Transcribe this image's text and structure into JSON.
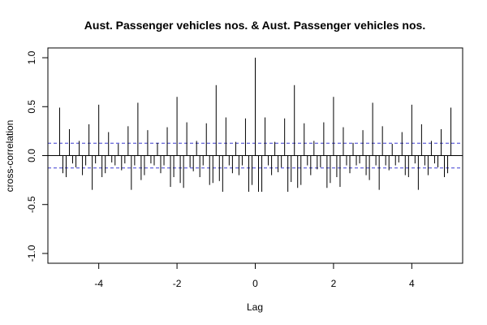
{
  "chart_data": {
    "type": "bar",
    "title": "Aust. Passenger vehicles nos. & Aust. Passenger vehicles nos.",
    "xlabel": "Lag",
    "ylabel": "cross-correlation",
    "xlim": [
      -5.3,
      5.3
    ],
    "ylim": [
      -1.1,
      1.1
    ],
    "x_ticks": [
      -4,
      -2,
      0,
      2,
      4
    ],
    "x_tick_labels": [
      "-4",
      "-2",
      "0",
      "2",
      "4"
    ],
    "y_ticks": [
      -1.0,
      -0.5,
      0.0,
      0.5,
      1.0
    ],
    "y_tick_labels": [
      "-1.0",
      "-0.5",
      "0.0",
      "0.5",
      "1.0"
    ],
    "confidence_limit": 0.127,
    "zero_line": 0,
    "grid": false,
    "style": {
      "bar_color": "#000000",
      "ci_color": "#3b3bd1"
    },
    "series": [
      {
        "lags": [
          -5.0,
          -4.917,
          -4.833,
          -4.75,
          -4.667,
          -4.583,
          -4.5,
          -4.417,
          -4.333,
          -4.25,
          -4.167,
          -4.083,
          -4.0,
          -3.917,
          -3.833,
          -3.75,
          -3.667,
          -3.583,
          -3.5,
          -3.417,
          -3.333,
          -3.25,
          -3.167,
          -3.083,
          -3.0,
          -2.917,
          -2.833,
          -2.75,
          -2.667,
          -2.583,
          -2.5,
          -2.417,
          -2.333,
          -2.25,
          -2.167,
          -2.083,
          -2.0,
          -1.917,
          -1.833,
          -1.75,
          -1.667,
          -1.583,
          -1.5,
          -1.417,
          -1.333,
          -1.25,
          -1.167,
          -1.083,
          -1.0,
          -0.917,
          -0.833,
          -0.75,
          -0.667,
          -0.583,
          -0.5,
          -0.417,
          -0.333,
          -0.25,
          -0.167,
          -0.083,
          0.0,
          0.083,
          0.167,
          0.25,
          0.333,
          0.417,
          0.5,
          0.583,
          0.667,
          0.75,
          0.833,
          0.917,
          1.0,
          1.083,
          1.167,
          1.25,
          1.333,
          1.417,
          1.5,
          1.583,
          1.667,
          1.75,
          1.833,
          1.917,
          2.0,
          2.083,
          2.167,
          2.25,
          2.333,
          2.417,
          2.5,
          2.583,
          2.667,
          2.75,
          2.833,
          2.917,
          3.0,
          3.083,
          3.167,
          3.25,
          3.333,
          3.417,
          3.5,
          3.583,
          3.667,
          3.75,
          3.833,
          3.917,
          4.0,
          4.083,
          4.167,
          4.25,
          4.333,
          4.417,
          4.5,
          4.583,
          4.667,
          4.75,
          4.833,
          4.917,
          5.0
        ],
        "values": [
          0.49,
          -0.18,
          -0.22,
          0.27,
          -0.08,
          -0.12,
          0.15,
          -0.2,
          -0.1,
          0.32,
          -0.35,
          -0.08,
          0.52,
          -0.22,
          -0.18,
          0.24,
          -0.07,
          -0.1,
          0.12,
          -0.15,
          -0.08,
          0.3,
          -0.35,
          -0.1,
          0.54,
          -0.25,
          -0.2,
          0.26,
          -0.08,
          -0.1,
          0.13,
          -0.18,
          -0.1,
          0.29,
          -0.32,
          -0.22,
          0.6,
          -0.28,
          -0.33,
          0.34,
          -0.12,
          -0.16,
          0.15,
          -0.22,
          -0.1,
          0.33,
          -0.3,
          -0.28,
          0.72,
          -0.26,
          -0.37,
          0.39,
          -0.1,
          -0.18,
          0.14,
          -0.2,
          -0.1,
          0.38,
          -0.37,
          -0.3,
          1.0,
          -0.37,
          -0.37,
          0.39,
          -0.1,
          -0.2,
          0.14,
          -0.17,
          -0.12,
          0.38,
          -0.37,
          -0.27,
          0.72,
          -0.33,
          -0.3,
          0.33,
          -0.1,
          -0.2,
          0.15,
          -0.14,
          -0.12,
          0.34,
          -0.33,
          -0.28,
          0.6,
          -0.22,
          -0.32,
          0.29,
          -0.1,
          -0.18,
          0.13,
          -0.1,
          -0.08,
          0.26,
          -0.2,
          -0.25,
          0.54,
          -0.1,
          -0.35,
          0.3,
          -0.1,
          -0.15,
          0.12,
          -0.1,
          -0.07,
          0.24,
          -0.2,
          -0.22,
          0.52,
          -0.08,
          -0.35,
          0.32,
          -0.1,
          -0.2,
          0.15,
          -0.08,
          -0.12,
          0.27,
          -0.22,
          -0.18,
          0.49
        ]
      }
    ]
  }
}
